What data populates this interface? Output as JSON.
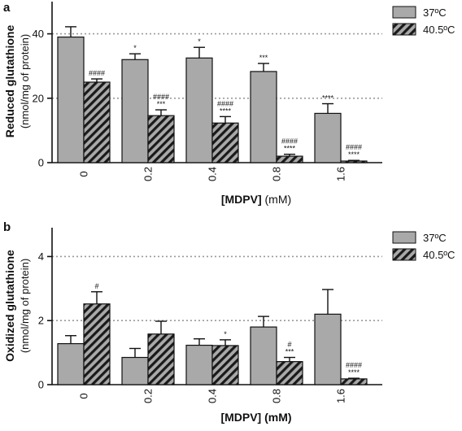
{
  "chart_data": [
    {
      "panel_letter": "a",
      "type": "bar",
      "categories": [
        "0",
        "0.2",
        "0.4",
        "0.8",
        "1.6"
      ],
      "series": [
        {
          "name": "37ºC",
          "values": [
            39.0,
            32.0,
            32.5,
            28.3,
            15.3
          ],
          "errors": [
            3.2,
            1.8,
            3.3,
            2.5,
            3.0
          ]
        },
        {
          "name": "40.5ºC",
          "values": [
            25.0,
            14.6,
            12.3,
            2.0,
            0.5
          ],
          "errors": [
            1.0,
            1.8,
            2.0,
            0.6,
            0.2
          ]
        }
      ],
      "annotations": {
        "37ºC": [
          "",
          "*",
          "*",
          "***",
          "****"
        ],
        "40.5ºC": [
          [
            "####"
          ],
          [
            "####",
            "***"
          ],
          [
            "####",
            "****"
          ],
          [
            "####",
            "****"
          ],
          [
            "####",
            "****"
          ]
        ]
      },
      "ylim": [
        0,
        50
      ],
      "yticks": [
        0,
        20,
        40
      ],
      "ytick_labels": [
        "0",
        "20",
        "40"
      ],
      "reference_lines": [
        20,
        40
      ],
      "ylabel_main": "Reduced glutathione",
      "ylabel_sub": "(nmol/mg of protein)",
      "xlabel_bold": "[MDPV]",
      "xlabel_rest": " (mM)",
      "legend_position": "top-right"
    },
    {
      "panel_letter": "b",
      "type": "bar",
      "categories": [
        "0",
        "0.2",
        "0.4",
        "0.8",
        "1.6"
      ],
      "series": [
        {
          "name": "37ºC",
          "values": [
            1.28,
            0.85,
            1.23,
            1.8,
            2.2
          ],
          "errors": [
            0.25,
            0.28,
            0.2,
            0.33,
            0.77
          ]
        },
        {
          "name": "40.5ºC",
          "values": [
            2.52,
            1.58,
            1.22,
            0.72,
            0.18
          ],
          "errors": [
            0.38,
            0.4,
            0.18,
            0.13,
            0.02
          ]
        }
      ],
      "annotations": {
        "37ºC": [
          "",
          "",
          "",
          "",
          ""
        ],
        "40.5ºC": [
          [
            "#"
          ],
          [],
          [
            "*"
          ],
          [
            "#",
            "***"
          ],
          [
            "####",
            "****"
          ]
        ]
      },
      "ylim": [
        0,
        4.9
      ],
      "yticks": [
        0,
        2,
        4
      ],
      "ytick_labels": [
        "0",
        "2",
        "4"
      ],
      "reference_lines": [
        2,
        4
      ],
      "ylabel_main": "Oxidized glutathione",
      "ylabel_sub": "(nmol/mg of protein)",
      "xlabel_bold": "[MDPV] (mM)",
      "xlabel_rest": "",
      "legend_position": "top-right"
    }
  ],
  "colors": {
    "bar_37": "#a9a9a9",
    "hatch_fill": "#a9a9a9",
    "hatch_stroke": "#1a1a1a",
    "axis": "#111111",
    "reference_line": "#9a9a9a"
  }
}
